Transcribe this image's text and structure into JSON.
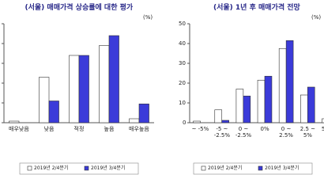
{
  "chart_data": [
    {
      "type": "bar",
      "title": "(서울) 매매가격 상승률에 대한 평가",
      "unit": "(%)",
      "categories": [
        "매우낮음",
        "낮음",
        "적정",
        "높음",
        "매우높음"
      ],
      "series": [
        {
          "name": "2019년 2/4분기",
          "color": "#ffffff",
          "values": [
            0.8,
            23,
            34,
            39,
            2
          ]
        },
        {
          "name": "2019년 3/4분기",
          "color": "#3b3bd9",
          "values": [
            0,
            11,
            34,
            44,
            9.5
          ]
        }
      ],
      "ylim": [
        0,
        50
      ],
      "yticks": [
        0,
        10,
        20,
        30,
        40,
        50
      ]
    },
    {
      "type": "bar",
      "title": "(서울) 1년 후 매매가격 전망",
      "unit": "(%)",
      "categories": [
        "~ -5%",
        "-5 ~\n-2.5%",
        "0 ~\n-2.5%",
        "0%",
        "0 ~\n2.5%",
        "2.5 ~\n5%",
        "5% ~"
      ],
      "series": [
        {
          "name": "2019년 2/4분기",
          "color": "#ffffff",
          "values": [
            0.8,
            6.5,
            17,
            21.5,
            37.5,
            14,
            2
          ]
        },
        {
          "name": "2019년 3/4분기",
          "color": "#3b3bd9",
          "values": [
            0,
            1.2,
            13.5,
            23.5,
            41.5,
            18,
            2
          ]
        }
      ],
      "ylim": [
        0,
        50
      ],
      "yticks": [
        0,
        10,
        20,
        30,
        40,
        50
      ]
    }
  ]
}
